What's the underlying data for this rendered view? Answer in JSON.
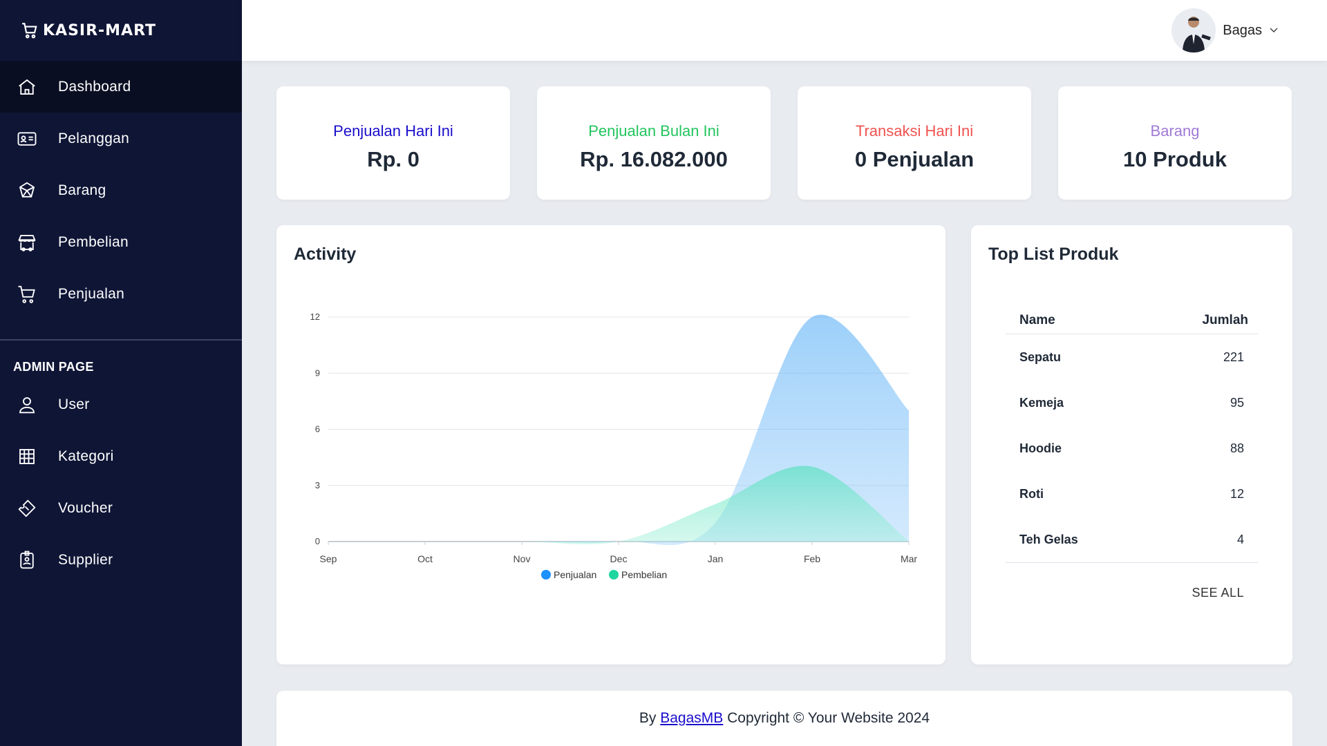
{
  "brand": {
    "name": "KASIR-MART",
    "icon": "cart-icon"
  },
  "sidebar": {
    "items": [
      {
        "label": "Dashboard",
        "icon": "home-icon",
        "active": true
      },
      {
        "label": "Pelanggan",
        "icon": "id-card-icon"
      },
      {
        "label": "Barang",
        "icon": "box-icon"
      },
      {
        "label": "Pembelian",
        "icon": "store-icon"
      },
      {
        "label": "Penjualan",
        "icon": "cart-icon"
      }
    ],
    "admin_title": "ADMIN PAGE",
    "admin_items": [
      {
        "label": "User",
        "icon": "user-icon"
      },
      {
        "label": "Kategori",
        "icon": "grid-icon"
      },
      {
        "label": "Voucher",
        "icon": "ticket-icon"
      },
      {
        "label": "Supplier",
        "icon": "badge-icon"
      }
    ]
  },
  "topbar": {
    "user_name": "Bagas"
  },
  "stats": [
    {
      "label": "Penjualan Hari Ini",
      "value": "Rp. 0",
      "color": "#1a0dcc"
    },
    {
      "label": "Penjualan Bulan Ini",
      "value": "Rp. 16.082.000",
      "color": "#22c55e"
    },
    {
      "label": "Transaksi Hari Ini",
      "value": "0 Penjualan",
      "color": "#ef5350"
    },
    {
      "label": "Barang",
      "value": "10 Produk",
      "color": "#a07ad8"
    }
  ],
  "activity": {
    "title": "Activity"
  },
  "chart_data": {
    "type": "area",
    "categories": [
      "Sep",
      "Oct",
      "Nov",
      "Dec",
      "Jan",
      "Feb",
      "Mar"
    ],
    "series": [
      {
        "name": "Penjualan",
        "values": [
          0,
          0,
          0,
          0,
          1,
          12,
          7
        ],
        "color": "#1e90ff"
      },
      {
        "name": "Pembelian",
        "values": [
          0,
          0,
          0,
          0,
          2,
          4,
          0
        ],
        "color": "#1fd6a0"
      }
    ],
    "yticks": [
      0,
      3,
      6,
      9,
      12
    ],
    "ylim": [
      0,
      12
    ],
    "grid": true,
    "legend": "bottom"
  },
  "toplist": {
    "title": "Top List Produk",
    "columns": [
      "Name",
      "Jumlah"
    ],
    "rows": [
      {
        "name": "Sepatu",
        "qty": "221"
      },
      {
        "name": "Kemeja",
        "qty": "95"
      },
      {
        "name": "Hoodie",
        "qty": "88"
      },
      {
        "name": "Roti",
        "qty": "12"
      },
      {
        "name": "Teh Gelas",
        "qty": "4"
      }
    ],
    "see_all": "SEE ALL"
  },
  "footer": {
    "prefix": "By ",
    "link": "BagasMB",
    "suffix": " Copyright © Your Website 2024"
  }
}
